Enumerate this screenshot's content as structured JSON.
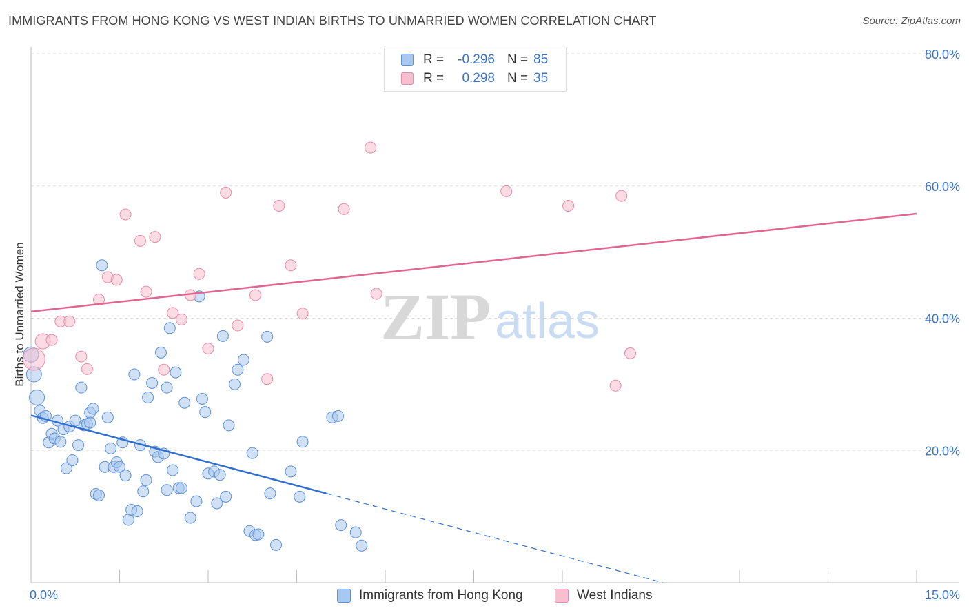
{
  "title": "IMMIGRANTS FROM HONG KONG VS WEST INDIAN BIRTHS TO UNMARRIED WOMEN CORRELATION CHART",
  "source": "Source: ZipAtlas.com",
  "watermark": {
    "zip": "ZIP",
    "atlas": "atlas"
  },
  "legend": {
    "rows": [
      {
        "label": "R =",
        "r": "-0.296",
        "n_label": "N =",
        "n": "85"
      },
      {
        "label": "R =",
        "r": "0.298",
        "n_label": "N =",
        "n": "35"
      }
    ]
  },
  "bottom_legend": [
    "Immigrants from Hong Kong",
    "West Indians"
  ],
  "chart_data": {
    "type": "scatter",
    "title": "IMMIGRANTS FROM HONG KONG VS WEST INDIAN BIRTHS TO UNMARRIED WOMEN CORRELATION CHART",
    "xlabel": "",
    "ylabel": "Births to Unmarried Women",
    "xlim": [
      0,
      15
    ],
    "ylim": [
      0,
      80
    ],
    "x_tick_labels": [
      "0.0%",
      "15.0%"
    ],
    "y_ticks": [
      20,
      40,
      60,
      80
    ],
    "y_tick_labels": [
      "20.0%",
      "40.0%",
      "60.0%",
      "80.0%"
    ],
    "colors": {
      "hk_fill": "#a9c8ef",
      "hk_stroke": "#5b8fd6",
      "hk_line": "#2f6fd0",
      "wi_fill": "#f7bfd0",
      "wi_stroke": "#e98aa8",
      "wi_line": "#e0668f",
      "grid": "#dddddd",
      "tick_text": "#3a73c8"
    },
    "series": [
      {
        "name": "Immigrants from Hong Kong",
        "r": -0.296,
        "n": 85,
        "trend": {
          "x0": 0,
          "y0": 25.3,
          "x1": 5.0,
          "y1": 13.5,
          "dash_x1": 10.7,
          "dash_y1": 0
        },
        "points": [
          [
            0.0,
            34.5
          ],
          [
            0.05,
            31.5
          ],
          [
            0.1,
            28.0
          ],
          [
            0.15,
            26.0
          ],
          [
            0.2,
            24.9
          ],
          [
            0.25,
            25.2
          ],
          [
            0.3,
            21.2
          ],
          [
            0.35,
            22.5
          ],
          [
            0.4,
            21.8
          ],
          [
            0.45,
            24.5
          ],
          [
            0.5,
            21.3
          ],
          [
            0.55,
            23.2
          ],
          [
            0.6,
            17.3
          ],
          [
            0.65,
            23.6
          ],
          [
            0.7,
            18.5
          ],
          [
            0.75,
            24.5
          ],
          [
            0.8,
            20.8
          ],
          [
            0.85,
            29.5
          ],
          [
            0.9,
            23.8
          ],
          [
            0.95,
            24.0
          ],
          [
            1.0,
            25.7
          ],
          [
            1.05,
            26.3
          ],
          [
            1.1,
            13.4
          ],
          [
            1.15,
            13.2
          ],
          [
            1.2,
            48.0
          ],
          [
            1.25,
            17.5
          ],
          [
            1.3,
            25.0
          ],
          [
            1.35,
            20.3
          ],
          [
            1.4,
            17.5
          ],
          [
            1.45,
            18.2
          ],
          [
            1.5,
            17.5
          ],
          [
            1.55,
            21.2
          ],
          [
            1.6,
            16.2
          ],
          [
            1.65,
            9.5
          ],
          [
            1.7,
            11.0
          ],
          [
            1.75,
            31.5
          ],
          [
            1.8,
            10.8
          ],
          [
            1.85,
            20.8
          ],
          [
            1.9,
            13.8
          ],
          [
            1.95,
            15.5
          ],
          [
            1.98,
            28.0
          ],
          [
            2.05,
            30.2
          ],
          [
            2.1,
            19.8
          ],
          [
            2.15,
            19.0
          ],
          [
            2.2,
            34.8
          ],
          [
            2.25,
            19.5
          ],
          [
            2.3,
            14.0
          ],
          [
            2.35,
            38.5
          ],
          [
            2.4,
            17.0
          ],
          [
            2.45,
            31.8
          ],
          [
            2.5,
            14.3
          ],
          [
            2.55,
            14.3
          ],
          [
            2.6,
            27.2
          ],
          [
            2.7,
            9.8
          ],
          [
            2.8,
            12.3
          ],
          [
            2.85,
            43.3
          ],
          [
            2.9,
            27.8
          ],
          [
            3.0,
            16.5
          ],
          [
            3.1,
            16.8
          ],
          [
            3.15,
            12.0
          ],
          [
            3.2,
            16.3
          ],
          [
            3.25,
            37.3
          ],
          [
            3.3,
            13.0
          ],
          [
            3.35,
            23.8
          ],
          [
            3.45,
            30.0
          ],
          [
            3.5,
            32.2
          ],
          [
            3.6,
            33.7
          ],
          [
            3.7,
            7.8
          ],
          [
            3.75,
            19.6
          ],
          [
            3.8,
            7.2
          ],
          [
            3.85,
            7.3
          ],
          [
            4.0,
            37.2
          ],
          [
            4.05,
            13.5
          ],
          [
            4.15,
            5.7
          ],
          [
            4.4,
            16.8
          ],
          [
            4.55,
            13.0
          ],
          [
            4.6,
            21.3
          ],
          [
            5.1,
            25.0
          ],
          [
            5.2,
            25.2
          ],
          [
            5.25,
            8.7
          ],
          [
            5.5,
            7.6
          ],
          [
            5.6,
            5.6
          ],
          [
            2.3,
            29.5
          ],
          [
            1.0,
            24.2
          ],
          [
            2.95,
            25.8
          ]
        ]
      },
      {
        "name": "West Indians",
        "r": 0.298,
        "n": 35,
        "trend": {
          "x0": 0,
          "y0": 41.0,
          "x1": 15.0,
          "y1": 55.8
        },
        "points": [
          [
            0.05,
            33.8
          ],
          [
            0.2,
            36.5
          ],
          [
            0.35,
            36.7
          ],
          [
            0.5,
            39.5
          ],
          [
            0.65,
            39.5
          ],
          [
            0.85,
            34.2
          ],
          [
            0.95,
            32.3
          ],
          [
            1.15,
            42.8
          ],
          [
            1.3,
            46.2
          ],
          [
            1.45,
            45.8
          ],
          [
            1.6,
            55.7
          ],
          [
            1.85,
            51.7
          ],
          [
            1.95,
            44.0
          ],
          [
            2.1,
            52.3
          ],
          [
            2.25,
            32.2
          ],
          [
            2.4,
            40.8
          ],
          [
            2.55,
            39.8
          ],
          [
            2.7,
            43.5
          ],
          [
            2.85,
            46.7
          ],
          [
            3.0,
            35.4
          ],
          [
            3.3,
            59.0
          ],
          [
            3.5,
            38.9
          ],
          [
            3.8,
            43.5
          ],
          [
            4.0,
            30.8
          ],
          [
            4.2,
            57.0
          ],
          [
            4.4,
            48.0
          ],
          [
            4.6,
            40.7
          ],
          [
            5.3,
            56.5
          ],
          [
            5.75,
            65.8
          ],
          [
            5.85,
            43.7
          ],
          [
            8.05,
            59.2
          ],
          [
            9.1,
            57.0
          ],
          [
            9.9,
            29.8
          ],
          [
            10.0,
            58.5
          ],
          [
            10.15,
            34.7
          ]
        ]
      }
    ]
  }
}
